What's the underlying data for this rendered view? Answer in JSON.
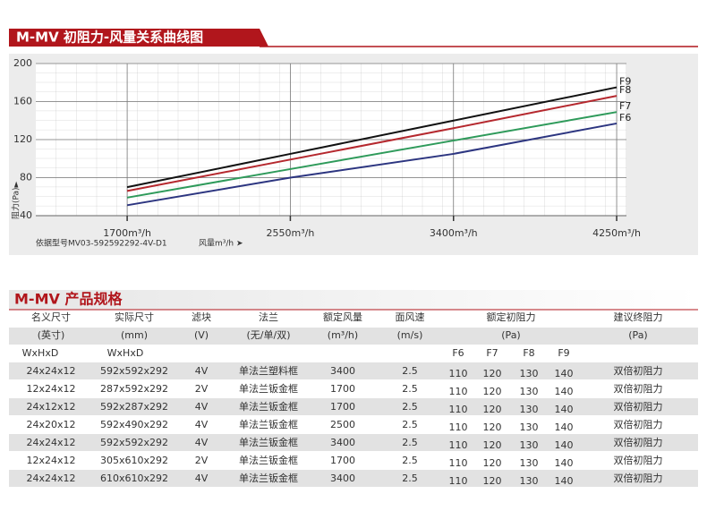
{
  "section_title": "M-MV 初阻力-风量关系曲线图",
  "chart_data": {
    "type": "line",
    "y_label": "阻力(Pa)►",
    "x_label": "风量m³/h ➤",
    "note": "依据型号MV03-592592292-4V-D1",
    "x": [
      1700,
      2550,
      3400,
      4250
    ],
    "series": [
      {
        "name": "F9",
        "color": "#111111",
        "values": [
          70,
          105,
          140,
          175
        ]
      },
      {
        "name": "F8",
        "color": "#b5282e",
        "values": [
          66,
          99,
          132,
          166
        ]
      },
      {
        "name": "F7",
        "color": "#2e9a5a",
        "values": [
          59,
          89,
          119,
          149
        ]
      },
      {
        "name": "F6",
        "color": "#2c3580",
        "values": [
          51,
          80,
          105,
          137
        ]
      }
    ],
    "xlim": [
      1224,
      4301
    ],
    "ylim": [
      40,
      200
    ],
    "xticks": [
      {
        "value": 1700,
        "label": "1700m³/h"
      },
      {
        "value": 2550,
        "label": "2550m³/h"
      },
      {
        "value": 3400,
        "label": "3400m³/h"
      },
      {
        "value": 4250,
        "label": "4250m³/h"
      }
    ],
    "yticks": [
      40,
      80,
      120,
      160,
      200
    ],
    "grid": true
  },
  "spec_title": "M-MV 产品规格",
  "table": {
    "header": [
      [
        "名义尺寸",
        "实际尺寸",
        "滤块",
        "法兰",
        "额定风量",
        "面风速",
        "额定初阻力",
        "建议终阻力"
      ],
      [
        "(英寸)",
        "(mm)",
        "(V)",
        "(无/单/双)",
        "(m³/h)",
        "(m/s)",
        "(Pa)",
        "(Pa)"
      ],
      [
        "WxHxD",
        "WxHxD",
        "F6",
        "F7",
        "F8",
        "F9"
      ]
    ],
    "rows": [
      [
        "24x24x12",
        "592x592x292",
        "4V",
        "单法兰塑料框",
        "3400",
        "2.5",
        "110",
        "120",
        "130",
        "140",
        "双倍初阻力"
      ],
      [
        "12x24x12",
        "287x592x292",
        "2V",
        "单法兰钣金框",
        "1700",
        "2.5",
        "110",
        "120",
        "130",
        "140",
        "双倍初阻力"
      ],
      [
        "24x12x12",
        "592x287x292",
        "4V",
        "单法兰钣金框",
        "1700",
        "2.5",
        "110",
        "120",
        "130",
        "140",
        "双倍初阻力"
      ],
      [
        "24x20x12",
        "592x490x292",
        "4V",
        "单法兰钣金框",
        "2500",
        "2.5",
        "110",
        "120",
        "130",
        "140",
        "双倍初阻力"
      ],
      [
        "24x24x12",
        "592x592x292",
        "4V",
        "单法兰钣金框",
        "3400",
        "2.5",
        "110",
        "120",
        "130",
        "140",
        "双倍初阻力"
      ],
      [
        "12x24x12",
        "305x610x292",
        "2V",
        "单法兰钣金框",
        "1700",
        "2.5",
        "110",
        "120",
        "130",
        "140",
        "双倍初阻力"
      ],
      [
        "24x24x12",
        "610x610x292",
        "4V",
        "单法兰钣金框",
        "3400",
        "2.5",
        "110",
        "120",
        "130",
        "140",
        "双倍初阻力"
      ]
    ]
  }
}
